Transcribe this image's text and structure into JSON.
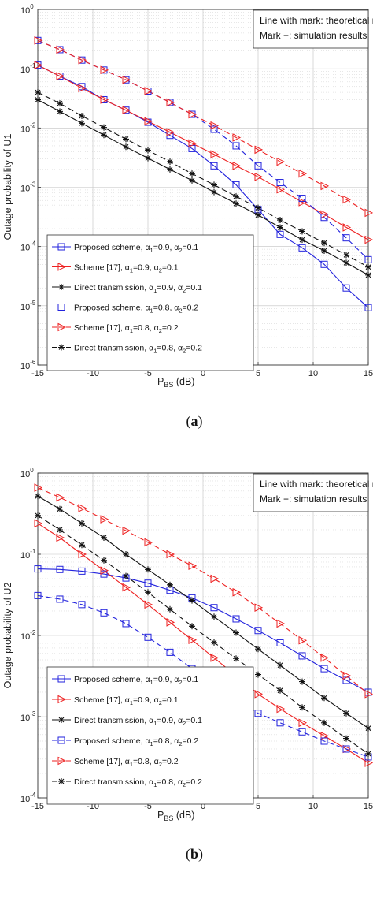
{
  "chart_data": [
    {
      "type": "line",
      "panel_label": "(a)",
      "xlabel": "P_BS (dB)",
      "xlabel_main": "P",
      "xlabel_sub": "BS",
      "xlabel_rest": " (dB)",
      "ylabel": "Outage probability of U1",
      "xlim": [
        -15,
        15
      ],
      "ylim": [
        1e-06,
        1
      ],
      "y_scale": "log",
      "grid": true,
      "x_ticks": [
        "-15",
        "-10",
        "-5",
        "0",
        "5",
        "10",
        "15"
      ],
      "y_ticks": [
        {
          "base": "10",
          "exp": "0"
        },
        {
          "base": "10",
          "exp": "-1"
        },
        {
          "base": "10",
          "exp": "-2"
        },
        {
          "base": "10",
          "exp": "-3"
        },
        {
          "base": "10",
          "exp": "-4"
        },
        {
          "base": "10",
          "exp": "-5"
        },
        {
          "base": "10",
          "exp": "-6"
        }
      ],
      "annotation": [
        "Line with mark: theoretical results",
        "Mark +: simulation results"
      ],
      "legend_placement": "bottom-left",
      "series": [
        {
          "name": "Proposed scheme, α₁=0.9, α₂=0.1",
          "legend": {
            "pre": "Proposed scheme, ",
            "a1": "=0.9, ",
            "a2": "=0.1"
          },
          "color": "#2222dd",
          "dash": "solid",
          "marker": "square",
          "x": [
            -15,
            -13,
            -11,
            -9,
            -7,
            -5,
            -3,
            -1,
            1,
            3,
            5,
            7,
            9,
            11,
            13,
            15
          ],
          "y": [
            0.115,
            0.075,
            0.05,
            0.03,
            0.02,
            0.0125,
            0.0075,
            0.0045,
            0.0023,
            0.0011,
            0.00042,
            0.00016,
            9.5e-05,
            5e-05,
            2e-05,
            9.3e-06
          ]
        },
        {
          "name": "Scheme [17], α₁=0.9, α₂=0.1",
          "legend": {
            "pre": "Scheme [17], ",
            "a1": "=0.9, ",
            "a2": "=0.1"
          },
          "color": "#ee2222",
          "dash": "solid",
          "marker": "triangle",
          "x": [
            -15,
            -13,
            -11,
            -9,
            -7,
            -5,
            -3,
            -1,
            1,
            3,
            5,
            7,
            9,
            11,
            13,
            15
          ],
          "y": [
            0.115,
            0.075,
            0.047,
            0.03,
            0.02,
            0.013,
            0.0085,
            0.0055,
            0.0036,
            0.0023,
            0.0015,
            0.00092,
            0.00056,
            0.00035,
            0.00021,
            0.00013
          ]
        },
        {
          "name": "Direct transmission, α₁=0.9, α₂=0.1",
          "legend": {
            "pre": "Direct transmission, ",
            "a1": "=0.9, ",
            "a2": "=0.1"
          },
          "color": "#111111",
          "dash": "solid",
          "marker": "star",
          "x": [
            -15,
            -13,
            -11,
            -9,
            -7,
            -5,
            -3,
            -1,
            1,
            3,
            5,
            7,
            9,
            11,
            13,
            15
          ],
          "y": [
            0.03,
            0.019,
            0.012,
            0.0076,
            0.0048,
            0.0031,
            0.002,
            0.0013,
            0.00083,
            0.00053,
            0.00034,
            0.00021,
            0.00013,
            8.5e-05,
            5.3e-05,
            3.3e-05
          ]
        },
        {
          "name": "Proposed scheme, α₁=0.8, α₂=0.2",
          "legend": {
            "pre": "Proposed scheme, ",
            "a1": "=0.8, ",
            "a2": "=0.2"
          },
          "color": "#2222dd",
          "dash": "dashed",
          "marker": "square",
          "x": [
            -15,
            -13,
            -11,
            -9,
            -7,
            -5,
            -3,
            -1,
            1,
            3,
            5,
            7,
            9,
            11,
            13,
            15
          ],
          "y": [
            0.3,
            0.21,
            0.14,
            0.095,
            0.065,
            0.042,
            0.027,
            0.017,
            0.0095,
            0.005,
            0.0023,
            0.0012,
            0.00065,
            0.00031,
            0.00014,
            6e-05
          ]
        },
        {
          "name": "Scheme [17], α₁=0.8, α₂=0.2",
          "legend": {
            "pre": "Scheme [17], ",
            "a1": "=0.8, ",
            "a2": "=0.2"
          },
          "color": "#ee2222",
          "dash": "dashed",
          "marker": "triangle",
          "x": [
            -15,
            -13,
            -11,
            -9,
            -7,
            -5,
            -3,
            -1,
            1,
            3,
            5,
            7,
            9,
            11,
            13,
            15
          ],
          "y": [
            0.3,
            0.21,
            0.14,
            0.095,
            0.065,
            0.042,
            0.027,
            0.017,
            0.011,
            0.0069,
            0.0043,
            0.0027,
            0.0017,
            0.00105,
            0.00062,
            0.00037
          ]
        },
        {
          "name": "Direct transmission, α₁=0.8, α₂=0.2",
          "legend": {
            "pre": "Direct transmission, ",
            "a1": "=0.8, ",
            "a2": "=0.2"
          },
          "color": "#111111",
          "dash": "dashed",
          "marker": "star",
          "x": [
            -15,
            -13,
            -11,
            -9,
            -7,
            -5,
            -3,
            -1,
            1,
            3,
            5,
            7,
            9,
            11,
            13,
            15
          ],
          "y": [
            0.04,
            0.026,
            0.016,
            0.0102,
            0.0065,
            0.0042,
            0.0027,
            0.0017,
            0.0011,
            0.0007,
            0.00045,
            0.00028,
            0.00018,
            0.000115,
            7.2e-05,
            4.5e-05
          ]
        }
      ]
    },
    {
      "type": "line",
      "panel_label": "(b)",
      "xlabel": "P_BS (dB)",
      "xlabel_main": "P",
      "xlabel_sub": "BS",
      "xlabel_rest": " (dB)",
      "ylabel": "Outage probability of U2",
      "xlim": [
        -15,
        15
      ],
      "ylim": [
        0.0001,
        1
      ],
      "y_scale": "log",
      "grid": true,
      "x_ticks": [
        "-15",
        "-10",
        "-5",
        "0",
        "5",
        "10",
        "15"
      ],
      "y_ticks": [
        {
          "base": "10",
          "exp": "0"
        },
        {
          "base": "10",
          "exp": "-1"
        },
        {
          "base": "10",
          "exp": "-2"
        },
        {
          "base": "10",
          "exp": "-3"
        },
        {
          "base": "10",
          "exp": "-4"
        }
      ],
      "annotation": [
        "Line with mark: theoretical results",
        "Mark +: simulation results"
      ],
      "legend_placement": "bottom-left",
      "series": [
        {
          "name": "Proposed scheme, α₁=0.9, α₂=0.1",
          "legend": {
            "pre": "Proposed scheme, ",
            "a1": "=0.9, ",
            "a2": "=0.1"
          },
          "color": "#2222dd",
          "dash": "solid",
          "marker": "square",
          "x": [
            -15,
            -13,
            -11,
            -9,
            -7,
            -5,
            -3,
            -1,
            1,
            3,
            5,
            7,
            9,
            11,
            13,
            15
          ],
          "y": [
            0.066,
            0.065,
            0.062,
            0.057,
            0.051,
            0.044,
            0.036,
            0.029,
            0.022,
            0.016,
            0.0115,
            0.0081,
            0.0056,
            0.0039,
            0.0028,
            0.002
          ]
        },
        {
          "name": "Scheme [17], α₁=0.9, α₂=0.1",
          "legend": {
            "pre": "Scheme [17], ",
            "a1": "=0.9, ",
            "a2": "=0.1"
          },
          "color": "#ee2222",
          "dash": "solid",
          "marker": "triangle",
          "x": [
            -15,
            -13,
            -11,
            -9,
            -7,
            -5,
            -3,
            -1,
            1,
            3,
            5,
            7,
            9,
            11,
            13,
            15
          ],
          "y": [
            0.24,
            0.16,
            0.1,
            0.063,
            0.039,
            0.024,
            0.0145,
            0.0088,
            0.0053,
            0.0032,
            0.0019,
            0.00125,
            0.00084,
            0.00058,
            0.0004,
            0.00027
          ]
        },
        {
          "name": "Direct transmission, α₁=0.9, α₂=0.1",
          "legend": {
            "pre": "Direct transmission, ",
            "a1": "=0.9, ",
            "a2": "=0.1"
          },
          "color": "#111111",
          "dash": "solid",
          "marker": "star",
          "x": [
            -15,
            -13,
            -11,
            -9,
            -7,
            -5,
            -3,
            -1,
            1,
            3,
            5,
            7,
            9,
            11,
            13,
            15
          ],
          "y": [
            0.52,
            0.36,
            0.24,
            0.16,
            0.1,
            0.065,
            0.042,
            0.027,
            0.017,
            0.0108,
            0.0068,
            0.0043,
            0.0027,
            0.0017,
            0.0011,
            0.00072
          ]
        },
        {
          "name": "Proposed scheme, α₁=0.8, α₂=0.2",
          "legend": {
            "pre": "Proposed scheme, ",
            "a1": "=0.8, ",
            "a2": "=0.2"
          },
          "color": "#2222dd",
          "dash": "dashed",
          "marker": "square",
          "x": [
            -15,
            -13,
            -11,
            -9,
            -7,
            -5,
            -3,
            -1,
            1,
            3,
            5,
            7,
            9,
            11,
            13,
            15
          ],
          "y": [
            0.031,
            0.028,
            0.024,
            0.019,
            0.014,
            0.0095,
            0.0062,
            0.0039,
            0.0025,
            0.0016,
            0.0011,
            0.00084,
            0.00065,
            0.0005,
            0.0004,
            0.00032
          ]
        },
        {
          "name": "Scheme [17], α₁=0.8, α₂=0.2",
          "legend": {
            "pre": "Scheme [17], ",
            "a1": "=0.8, ",
            "a2": "=0.2"
          },
          "color": "#ee2222",
          "dash": "dashed",
          "marker": "triangle",
          "x": [
            -15,
            -13,
            -11,
            -9,
            -7,
            -5,
            -3,
            -1,
            1,
            3,
            5,
            7,
            9,
            11,
            13,
            15
          ],
          "y": [
            0.66,
            0.5,
            0.37,
            0.27,
            0.195,
            0.14,
            0.1,
            0.072,
            0.05,
            0.034,
            0.022,
            0.014,
            0.0087,
            0.0053,
            0.0032,
            0.0019
          ]
        },
        {
          "name": "Direct transmission, α₁=0.8, α₂=0.2",
          "legend": {
            "pre": "Direct transmission, ",
            "a1": "=0.8, ",
            "a2": "=0.2"
          },
          "color": "#111111",
          "dash": "dashed",
          "marker": "star",
          "x": [
            -15,
            -13,
            -11,
            -9,
            -7,
            -5,
            -3,
            -1,
            1,
            3,
            5,
            7,
            9,
            11,
            13,
            15
          ],
          "y": [
            0.3,
            0.2,
            0.13,
            0.084,
            0.054,
            0.034,
            0.021,
            0.013,
            0.0082,
            0.0052,
            0.0033,
            0.0021,
            0.0013,
            0.00084,
            0.00054,
            0.00035
          ]
        }
      ]
    }
  ]
}
